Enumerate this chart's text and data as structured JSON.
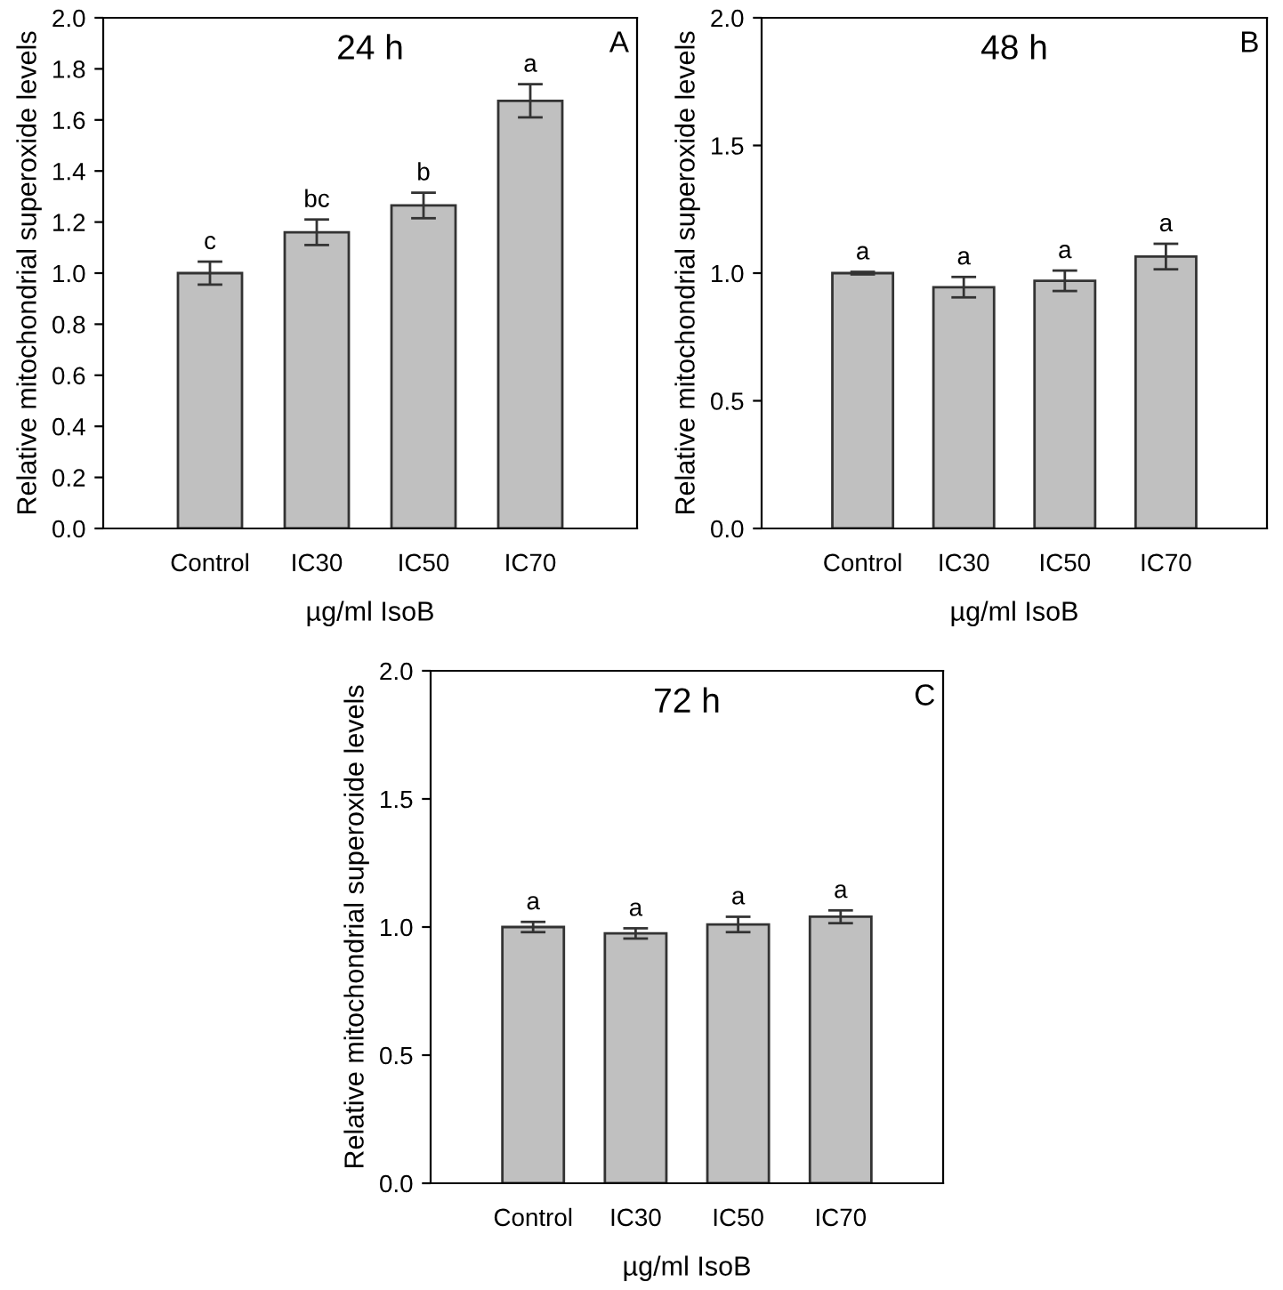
{
  "chart_data": [
    {
      "type": "bar",
      "title": "24 h",
      "xlabel": "µg/ml IsoB",
      "ylabel": "Relative mitochondrial superoxide levels",
      "categories": [
        "Control",
        "IC30",
        "IC50",
        "IC70"
      ],
      "values": [
        1.0,
        1.16,
        1.265,
        1.675
      ],
      "errors": [
        0.045,
        0.05,
        0.05,
        0.065
      ],
      "color": "#c0c0c0",
      "ylim": [
        0,
        2.0
      ],
      "yticks": [
        {
          "value": 0,
          "label": "0.0"
        },
        {
          "value": 0.2,
          "label": "0.2"
        },
        {
          "value": 0.4,
          "label": "0.4"
        },
        {
          "value": 0.6,
          "label": "0.6"
        },
        {
          "value": 0.8,
          "label": "0.8"
        },
        {
          "value": 1.0,
          "label": "1.0"
        },
        {
          "value": 1.2,
          "label": "1.2"
        },
        {
          "value": 1.4,
          "label": "1.4"
        },
        {
          "value": 1.6,
          "label": "1.6"
        },
        {
          "value": 1.8,
          "label": "1.8"
        },
        {
          "value": 2.0,
          "label": "2.0"
        }
      ],
      "grid": false,
      "annotations": [
        "A",
        {
          "text": "c",
          "x": "Control",
          "y": 1.045
        },
        {
          "text": "bc",
          "x": "IC30",
          "y": 1.21
        },
        {
          "text": "b",
          "x": "IC50",
          "y": 1.315
        },
        {
          "text": "a",
          "x": "IC70",
          "y": 1.74
        }
      ]
    },
    {
      "type": "bar",
      "title": "48 h",
      "xlabel": "µg/ml IsoB",
      "ylabel": "Relative mitochondrial superoxide levels",
      "categories": [
        "Control",
        "IC30",
        "IC50",
        "IC70"
      ],
      "values": [
        1.0,
        0.945,
        0.97,
        1.065
      ],
      "errors": [
        0.005,
        0.04,
        0.04,
        0.05
      ],
      "color": "#c0c0c0",
      "ylim": [
        0,
        2.0
      ],
      "yticks": [
        {
          "value": 0,
          "label": "0.0"
        },
        {
          "value": 0.5,
          "label": "0.5"
        },
        {
          "value": 1.0,
          "label": "1.0"
        },
        {
          "value": 1.5,
          "label": "1.5"
        },
        {
          "value": 2.0,
          "label": "2.0"
        }
      ],
      "grid": false,
      "annotations": [
        "B",
        {
          "text": "a",
          "x": "Control",
          "y": 1.005
        },
        {
          "text": "a",
          "x": "IC30",
          "y": 0.985
        },
        {
          "text": "a",
          "x": "IC50",
          "y": 1.01
        },
        {
          "text": "a",
          "x": "IC70",
          "y": 1.115
        }
      ]
    },
    {
      "type": "bar",
      "title": "72 h",
      "xlabel": "µg/ml IsoB",
      "ylabel": "Relative mitochondrial superoxide levels",
      "categories": [
        "Control",
        "IC30",
        "IC50",
        "IC70"
      ],
      "values": [
        1.0,
        0.975,
        1.01,
        1.04
      ],
      "errors": [
        0.02,
        0.02,
        0.03,
        0.025
      ],
      "color": "#c0c0c0",
      "ylim": [
        0,
        2.0
      ],
      "yticks": [
        {
          "value": 0,
          "label": "0.0"
        },
        {
          "value": 0.5,
          "label": "0.5"
        },
        {
          "value": 1.0,
          "label": "1.0"
        },
        {
          "value": 1.5,
          "label": "1.5"
        },
        {
          "value": 2.0,
          "label": "2.0"
        }
      ],
      "grid": false,
      "annotations": [
        "C",
        {
          "text": "a",
          "x": "Control",
          "y": 1.02
        },
        {
          "text": "a",
          "x": "IC30",
          "y": 0.995
        },
        {
          "text": "a",
          "x": "IC50",
          "y": 1.04
        },
        {
          "text": "a",
          "x": "IC70",
          "y": 1.065
        }
      ]
    }
  ]
}
